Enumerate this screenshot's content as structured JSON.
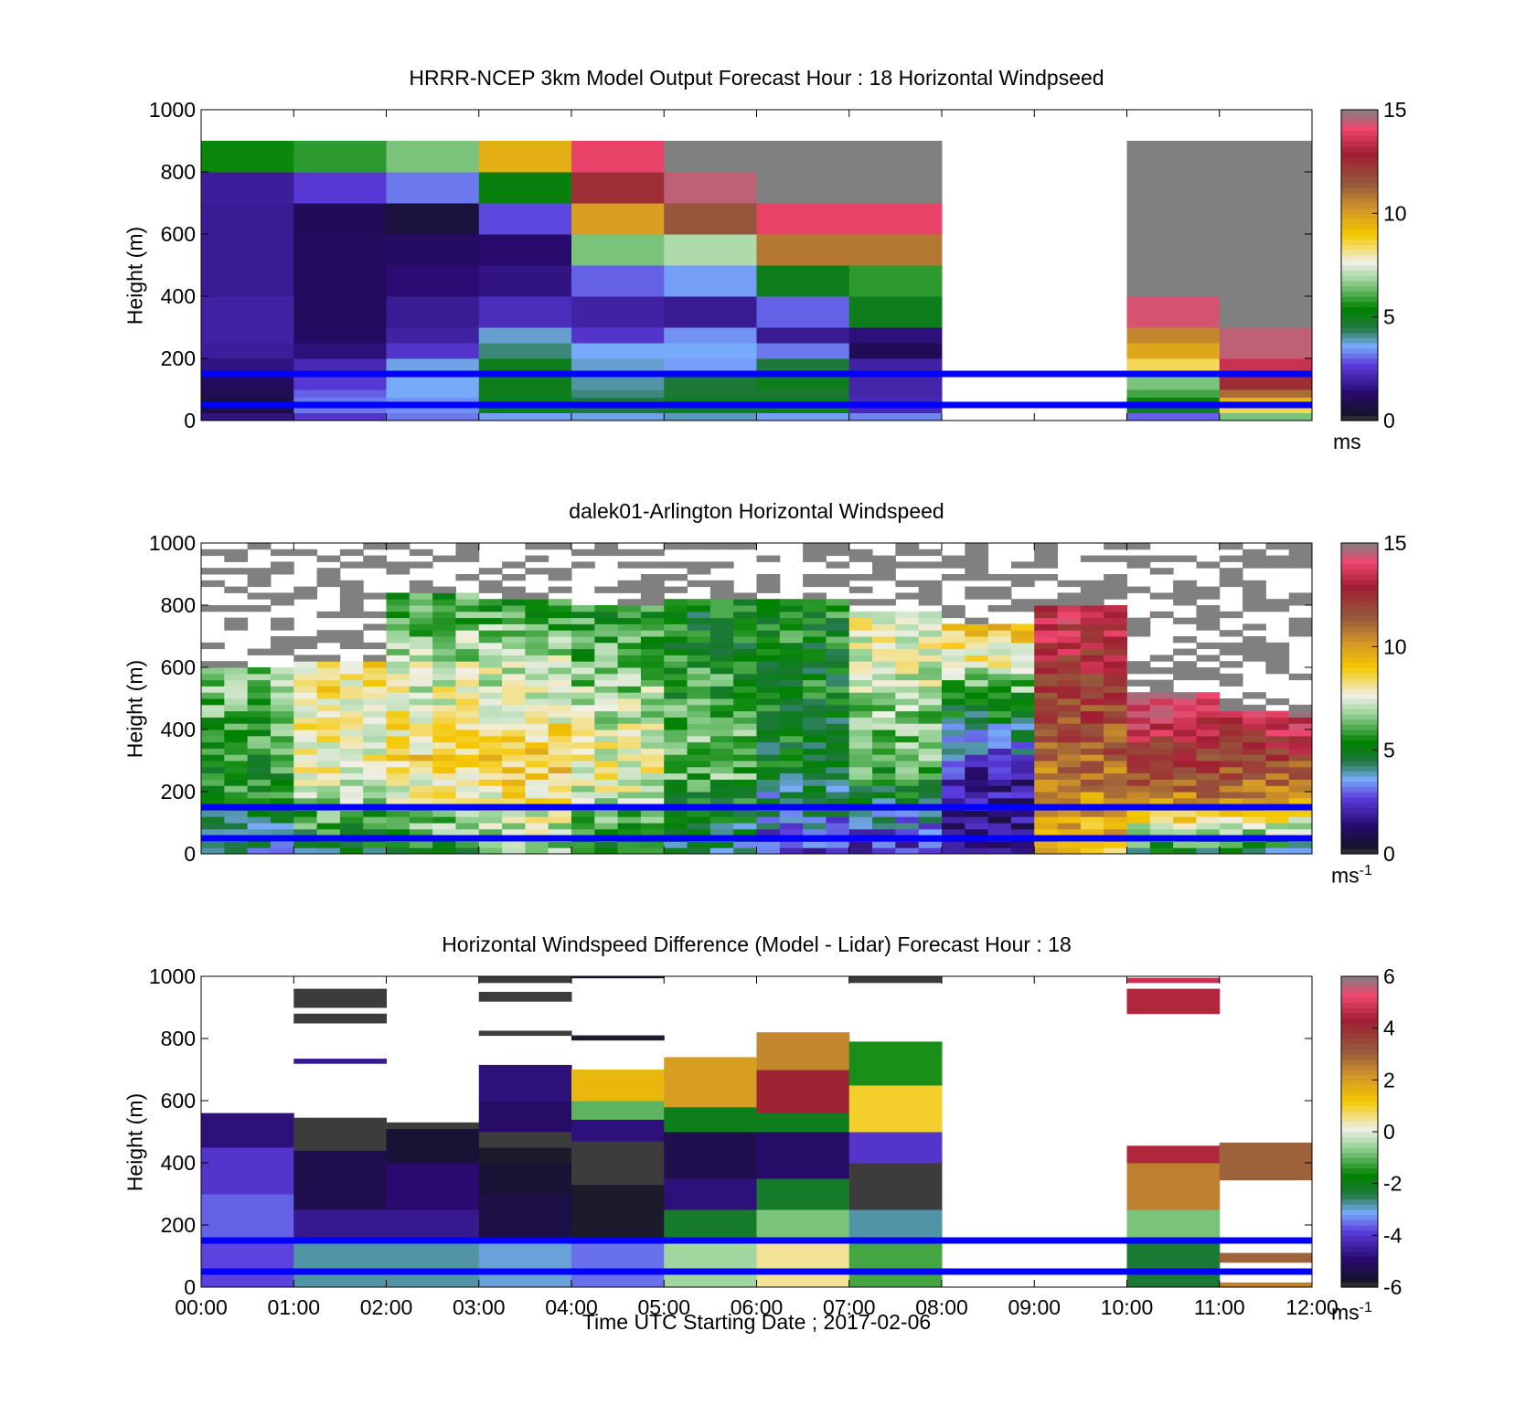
{
  "figure": {
    "xtitle": "Time UTC  Starting Date ; 2017-02-06",
    "units_top": "ms",
    "units_mid": "ms",
    "units_mid_exp": "-1",
    "units_bot": "ms",
    "units_bot_exp": "-1",
    "reference_lines_m": [
      150,
      50
    ],
    "reference_line_color": "#0000ff"
  },
  "chart_data": [
    {
      "type": "heatmap",
      "title": "HRRR-NCEP 3km Model Output   Forecast Hour : 18 Horizontal Windpseed",
      "xlabel": "",
      "ylabel": "Height (m)",
      "x_ticks": [
        "00:00",
        "01:00",
        "02:00",
        "03:00",
        "04:00",
        "05:00",
        "06:00",
        "07:00",
        "08:00",
        "09:00",
        "10:00",
        "11:00",
        "12:00"
      ],
      "xlim_hours": [
        0,
        12
      ],
      "ylim": [
        0,
        1000
      ],
      "y_ticks": [
        0,
        200,
        400,
        600,
        800,
        1000
      ],
      "colorbar": {
        "range": [
          0,
          15
        ],
        "ticks": [
          0,
          5,
          10,
          15
        ],
        "units": "ms"
      },
      "height_levels_m": [
        25,
        50,
        75,
        100,
        150,
        200,
        250,
        300,
        400,
        500,
        600,
        700,
        800,
        900,
        1000
      ],
      "columns": [
        {
          "hour": 0,
          "speeds": [
            1.6,
            0.7,
            0.7,
            0.9,
            1.1,
            1.6,
            1.9,
            2.0,
            2.0,
            1.8,
            1.8,
            1.8,
            1.9,
            5.5
          ]
        },
        {
          "hour": 1,
          "speeds": [
            2.5,
            3.2,
            3.2,
            3.0,
            2.6,
            2.2,
            1.5,
            1.2,
            1.1,
            1.1,
            1.1,
            1.0,
            2.6,
            5.8
          ]
        },
        {
          "hour": 2,
          "speeds": [
            3.2,
            3.4,
            3.4,
            3.6,
            3.6,
            3.7,
            2.5,
            2.0,
            1.8,
            1.4,
            1.2,
            0.6,
            3.2,
            6.5
          ]
        },
        {
          "hour": 3,
          "speeds": [
            3.5,
            5.0,
            5.0,
            5.0,
            5.0,
            5.0,
            4.2,
            3.8,
            2.3,
            1.6,
            1.3,
            2.8,
            5.2,
            9.6
          ]
        },
        {
          "hour": 4,
          "speeds": [
            3.7,
            4.5,
            4.5,
            4.2,
            4.0,
            3.8,
            3.6,
            2.5,
            2.0,
            3.0,
            6.5,
            10.0,
            12.5,
            14.0
          ]
        },
        {
          "hour": 5,
          "speeds": [
            3.9,
            5.0,
            5.0,
            4.6,
            4.6,
            3.5,
            3.6,
            3.4,
            1.8,
            3.5,
            7.0,
            11.5,
            14.5,
            15.5
          ]
        },
        {
          "hour": 6,
          "speeds": [
            3.5,
            5.0,
            5.0,
            4.6,
            5.0,
            4.5,
            3.2,
            1.8,
            3.0,
            5.0,
            10.8,
            14.0,
            15.5,
            15.5
          ]
        },
        {
          "hour": 7,
          "speeds": [
            3.3,
            2.2,
            2.2,
            2.1,
            2.1,
            2.0,
            1.0,
            1.5,
            5.0,
            5.8,
            10.8,
            14.0,
            15.5,
            15.5
          ]
        },
        {
          "hour": 8,
          "speeds": []
        },
        {
          "hour": 9,
          "speeds": []
        },
        {
          "hour": 10,
          "speeds": [
            3.0,
            5.0,
            5.0,
            6.0,
            6.5,
            8.5,
            9.8,
            10.5,
            14.3,
            15.5,
            15.5,
            15.5,
            15.5,
            15.5
          ]
        },
        {
          "hour": 11,
          "speeds": [
            6.5,
            8.5,
            9.5,
            11.0,
            12.5,
            13.5,
            14.5,
            14.5,
            15.5,
            15.5,
            15.5,
            15.5,
            15.5,
            15.5
          ]
        }
      ]
    },
    {
      "type": "heatmap",
      "title": "dalek01-Arlington  Horizontal Windspeed",
      "xlabel": "",
      "ylabel": "Height (m)",
      "x_ticks": [
        "",
        "",
        "",
        "",
        "",
        "",
        "",
        "",
        "",
        "",
        "",
        "",
        ""
      ],
      "xlim_hours": [
        0,
        12
      ],
      "ylim": [
        0,
        1000
      ],
      "y_ticks": [
        0,
        200,
        400,
        600,
        800,
        1000
      ],
      "colorbar": {
        "range": [
          0,
          15
        ],
        "ticks": [
          0,
          5,
          10,
          15
        ],
        "units": "ms-1"
      },
      "time_step_hours": 0.25,
      "profiles_by_period": [
        {
          "from_hour": 0.0,
          "to_hour": 1.0,
          "near_sfc": 4.0,
          "mid": 5.5,
          "upper": 6.5,
          "top_of_data_m": 580
        },
        {
          "from_hour": 1.0,
          "to_hour": 2.0,
          "near_sfc": 4.5,
          "mid": 7.5,
          "upper": 8.5,
          "top_of_data_m": 600
        },
        {
          "from_hour": 2.0,
          "to_hour": 3.0,
          "near_sfc": 5.5,
          "mid": 8.8,
          "upper": 6.0,
          "top_of_data_m": 820
        },
        {
          "from_hour": 3.0,
          "to_hour": 4.0,
          "near_sfc": 6.5,
          "mid": 9.0,
          "upper": 6.0,
          "top_of_data_m": 800
        },
        {
          "from_hour": 4.0,
          "to_hour": 5.0,
          "near_sfc": 5.0,
          "mid": 8.0,
          "upper": 5.5,
          "top_of_data_m": 790
        },
        {
          "from_hour": 5.0,
          "to_hour": 6.0,
          "near_sfc": 4.0,
          "mid": 6.5,
          "upper": 5.0,
          "top_of_data_m": 810
        },
        {
          "from_hour": 6.0,
          "to_hour": 7.0,
          "near_sfc": 2.5,
          "mid": 5.0,
          "upper": 5.5,
          "top_of_data_m": 800
        },
        {
          "from_hour": 7.0,
          "to_hour": 8.0,
          "near_sfc": 2.0,
          "mid": 6.0,
          "upper": 8.0,
          "top_of_data_m": 760
        },
        {
          "from_hour": 8.0,
          "to_hour": 9.0,
          "near_sfc": 1.5,
          "mid": 2.0,
          "upper": 9.5,
          "top_of_data_m": 730
        },
        {
          "from_hour": 9.0,
          "to_hour": 10.0,
          "near_sfc": 9.0,
          "mid": 11.0,
          "upper": 13.5,
          "top_of_data_m": 780
        },
        {
          "from_hour": 10.0,
          "to_hour": 11.0,
          "near_sfc": 5.0,
          "mid": 10.5,
          "upper": 14.5,
          "top_of_data_m": 500
        },
        {
          "from_hour": 11.0,
          "to_hour": 12.0,
          "near_sfc": 4.5,
          "mid": 10.0,
          "upper": 14.0,
          "top_of_data_m": 450
        }
      ]
    },
    {
      "type": "heatmap",
      "title": "Horizontal Windspeed Difference (Model - Lidar) Forecast Hour : 18",
      "xlabel": "Time UTC  Starting Date ; 2017-02-06",
      "ylabel": "Height (m)",
      "x_ticks": [
        "00:00",
        "01:00",
        "02:00",
        "03:00",
        "04:00",
        "05:00",
        "06:00",
        "07:00",
        "08:00",
        "09:00",
        "10:00",
        "11:00",
        "12:00"
      ],
      "xlim_hours": [
        0,
        12
      ],
      "ylim": [
        0,
        1000
      ],
      "y_ticks": [
        0,
        200,
        400,
        600,
        800,
        1000
      ],
      "colorbar": {
        "range": [
          -6,
          6
        ],
        "ticks": [
          -6,
          -4,
          -2,
          0,
          2,
          4,
          6
        ],
        "units": "ms-1"
      },
      "columns": [
        {
          "hour": 0,
          "segments": [
            [
              0,
              150,
              -3.8
            ],
            [
              150,
              300,
              -3.6
            ],
            [
              300,
              450,
              -4.0
            ],
            [
              450,
              560,
              -4.8
            ]
          ]
        },
        {
          "hour": 1,
          "segments": [
            [
              0,
              150,
              -2.8
            ],
            [
              150,
              250,
              -4.6
            ],
            [
              250,
              440,
              -5.3
            ],
            [
              440,
              545,
              -6.5
            ],
            [
              720,
              735,
              -4.6
            ],
            [
              850,
              880,
              -6.5
            ],
            [
              900,
              960,
              -6.5
            ]
          ]
        },
        {
          "hour": 2,
          "segments": [
            [
              0,
              150,
              -2.8
            ],
            [
              150,
              250,
              -4.6
            ],
            [
              250,
              400,
              -4.9
            ],
            [
              400,
              510,
              -5.6
            ],
            [
              510,
              530,
              -6.5
            ]
          ]
        },
        {
          "hour": 3,
          "segments": [
            [
              0,
              150,
              -3.0
            ],
            [
              150,
              300,
              -5.4
            ],
            [
              300,
              400,
              -5.6
            ],
            [
              400,
              450,
              -5.8
            ],
            [
              450,
              500,
              -6.5
            ],
            [
              500,
              600,
              -5.0
            ],
            [
              600,
              715,
              -4.8
            ],
            [
              810,
              825,
              -6.5
            ],
            [
              920,
              950,
              -6.5
            ],
            [
              980,
              1000,
              -6.5
            ]
          ]
        },
        {
          "hour": 4,
          "segments": [
            [
              0,
              150,
              -3.5
            ],
            [
              150,
              330,
              -5.8
            ],
            [
              330,
              470,
              -6.5
            ],
            [
              470,
              540,
              -4.8
            ],
            [
              540,
              600,
              -1.0
            ],
            [
              600,
              700,
              1.5
            ],
            [
              795,
              810,
              -5.8
            ],
            [
              995,
              1000,
              -5.8
            ]
          ]
        },
        {
          "hour": 5,
          "segments": [
            [
              0,
              150,
              -0.5
            ],
            [
              150,
              250,
              -2.2
            ],
            [
              250,
              350,
              -4.8
            ],
            [
              350,
              500,
              -5.3
            ],
            [
              500,
              580,
              -2.0
            ],
            [
              580,
              740,
              2.0
            ]
          ]
        },
        {
          "hour": 6,
          "segments": [
            [
              0,
              150,
              0.5
            ],
            [
              150,
              250,
              -0.8
            ],
            [
              250,
              350,
              -2.2
            ],
            [
              350,
              500,
              -5.0
            ],
            [
              500,
              560,
              -2.0
            ],
            [
              560,
              700,
              4.2
            ],
            [
              700,
              820,
              2.4
            ]
          ]
        },
        {
          "hour": 7,
          "segments": [
            [
              0,
              150,
              -1.2
            ],
            [
              150,
              250,
              -2.8
            ],
            [
              250,
              400,
              -6.5
            ],
            [
              400,
              500,
              -4.0
            ],
            [
              500,
              650,
              1.0
            ],
            [
              650,
              790,
              -1.5
            ],
            [
              980,
              1000,
              -6.5
            ]
          ]
        },
        {
          "hour": 8,
          "segments": []
        },
        {
          "hour": 9,
          "segments": []
        },
        {
          "hour": 10,
          "segments": [
            [
              0,
              150,
              -2.3
            ],
            [
              150,
              250,
              -0.8
            ],
            [
              250,
              400,
              2.5
            ],
            [
              400,
              455,
              4.5
            ],
            [
              880,
              960,
              4.5
            ],
            [
              980,
              995,
              4.8
            ]
          ]
        },
        {
          "hour": 11,
          "segments": [
            [
              0,
              15,
              2.5
            ],
            [
              80,
              110,
              3.0
            ],
            [
              345,
              465,
              3.0
            ]
          ]
        }
      ]
    }
  ]
}
